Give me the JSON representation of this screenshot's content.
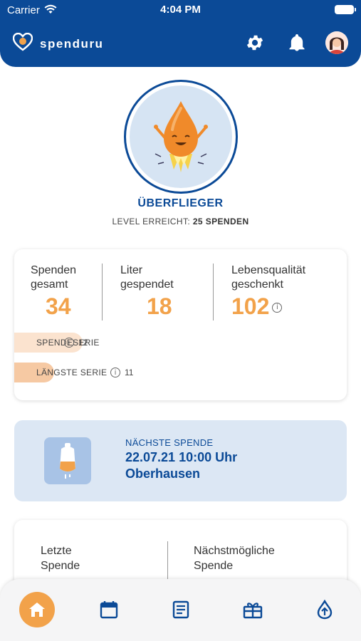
{
  "status_bar": {
    "carrier": "Carrier",
    "time": "4:04 PM"
  },
  "header": {
    "app_name": "spenduru"
  },
  "colors": {
    "primary": "#0b4a97",
    "accent": "#f2a24a",
    "card_bg": "#dce7f4"
  },
  "badge": {
    "title": "ÜBERFLIEGER",
    "level_prefix": "LEVEL ERREICHT:",
    "level_value": "25 SPENDEN"
  },
  "stats": {
    "donations_total": {
      "label_line1": "Spenden",
      "label_line2": "gesamt",
      "value": "34"
    },
    "liters_donated": {
      "label_line1": "Liter",
      "label_line2": "gespendet",
      "value": "18"
    },
    "quality_of_life": {
      "label_line1": "Lebensqualität",
      "label_line2": "geschenkt",
      "value": "102"
    },
    "streak": {
      "label": "SPENDESERIE",
      "value": "12",
      "level": 0.72
    },
    "longest_streak": {
      "label": "LÄNGSTE SERIE",
      "value": "11",
      "level": 0.66
    }
  },
  "next_donation": {
    "label": "NÄCHSTE SPENDE",
    "datetime": "22.07.21 10:00 Uhr",
    "location": "Oberhausen"
  },
  "last_card": {
    "left_line1": "Letzte",
    "left_line2": "Spende",
    "right_line1": "Nächstmögliche",
    "right_line2": "Spende"
  },
  "nav": {
    "items": [
      "home-icon",
      "calendar-icon",
      "news-icon",
      "gift-icon",
      "donate-icon"
    ]
  }
}
